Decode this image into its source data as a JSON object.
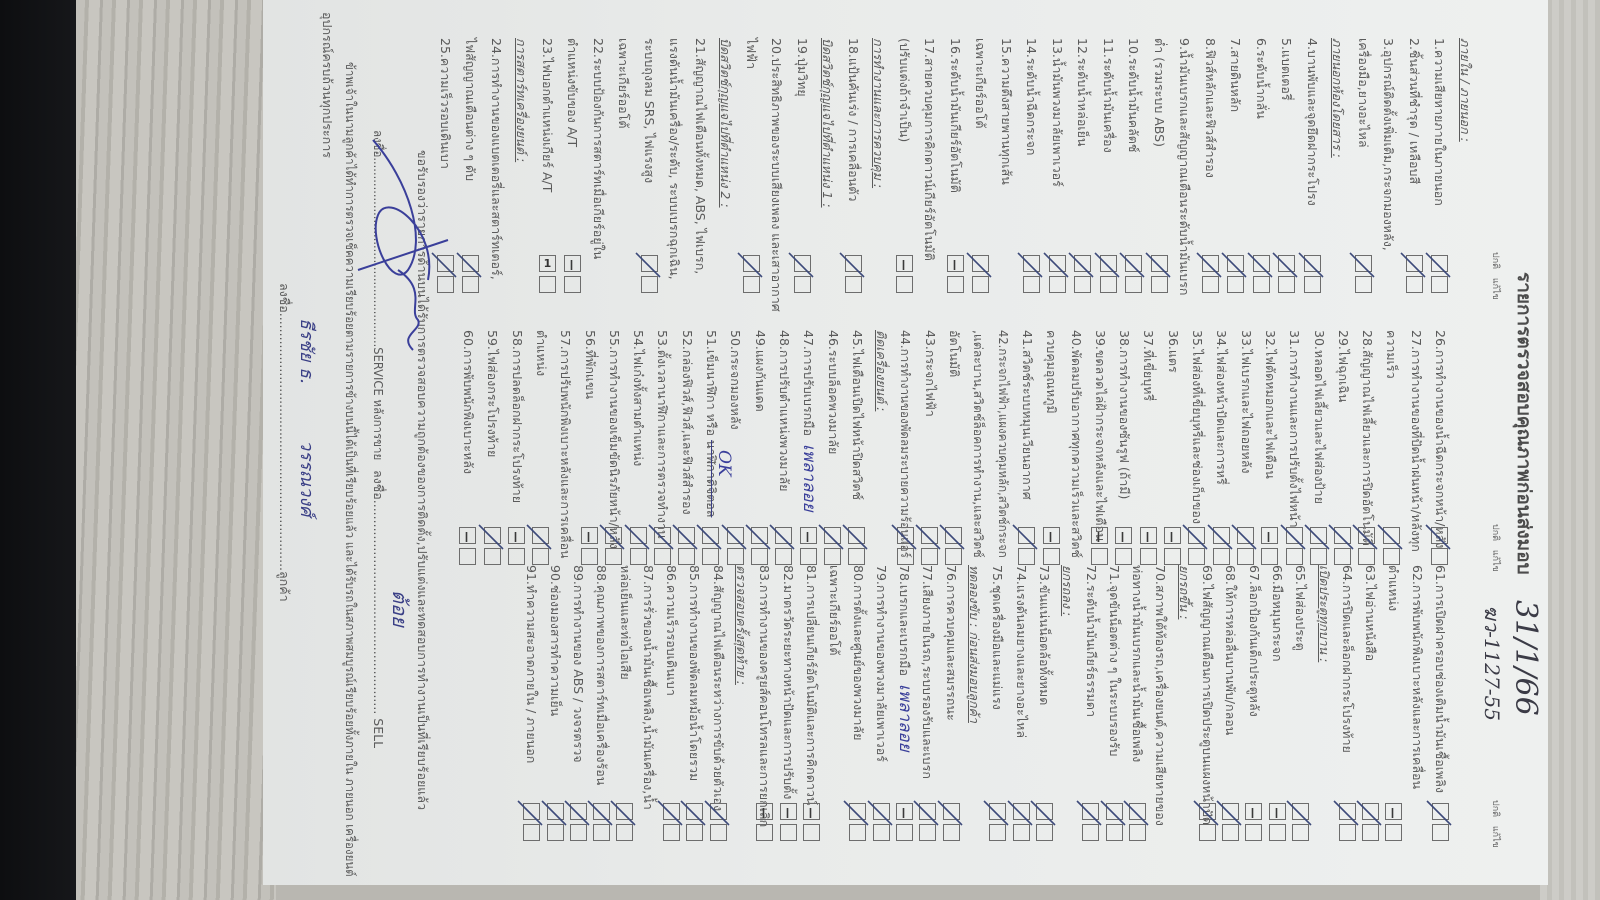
{
  "title": "รายการตรวจสอบคุณภาพก่อนส่งมอบ",
  "handwritten": {
    "date": "31/1/66",
    "plate": "ฆว-1127-55"
  },
  "column_header": "ปกติ แก้ไข",
  "colors": {
    "ink_print": "#5b5b5b",
    "ink_pen": "#3a3f9a",
    "check_mark": "#3d4a7a"
  },
  "columns": [
    {
      "rows": [
        {
          "type": "heading",
          "text": "ภายใน / ภายนอก :"
        },
        {
          "type": "item",
          "lines": [
            "1.ความเสียหายภายในภายนอก"
          ],
          "mark": "check"
        },
        {
          "type": "item",
          "lines": [
            "2.ชิ้นส่วนที่ชำรุด / เหลือบสี"
          ],
          "mark": "check"
        },
        {
          "type": "item",
          "lines": [
            "3.อุปกรณ์ติดตั้งเพิ่มเติม,กระจกมองหลัง,",
            "เครื่องมือ,ยางอะไหล่"
          ],
          "mark": "check"
        },
        {
          "type": "heading",
          "text": "ภายนอกห้องโดยสาร :"
        },
        {
          "type": "item",
          "lines": [
            "4.บานพับและจุดยึดฝากระโปรง"
          ],
          "mark": "check"
        },
        {
          "type": "item",
          "lines": [
            "5.แบตเตอรี่"
          ],
          "mark": "check"
        },
        {
          "type": "item",
          "lines": [
            "6.ระดับน้ำกลั่น"
          ],
          "mark": "check"
        },
        {
          "type": "item",
          "lines": [
            "7.สายดินหลัก"
          ],
          "mark": "check"
        },
        {
          "type": "item",
          "lines": [
            "8.ฟิวส์หลักและฟิวส์สำรอง"
          ],
          "mark": "check"
        },
        {
          "type": "item",
          "lines": [
            "9.น้ำมันเบรกและสัญญาณเตือนระดับน้ำมันเบรก",
            "ต่ำ (รวมระบบ ABS)"
          ],
          "mark": "check"
        },
        {
          "type": "item",
          "lines": [
            "10.ระดับน้ำมันคลัตช์"
          ],
          "mark": "check"
        },
        {
          "type": "item",
          "lines": [
            "11.ระดับน้ำมันเครื่อง"
          ],
          "mark": "check"
        },
        {
          "type": "item",
          "lines": [
            "12.ระดับน้ำหล่อเย็น"
          ],
          "mark": "check"
        },
        {
          "type": "item",
          "lines": [
            "13.น้ำมันพวงมาลัยเพาเวอร์"
          ],
          "mark": "check"
        },
        {
          "type": "item",
          "lines": [
            "14.ระดับน้ำฉีดกระจก"
          ],
          "mark": "check"
        },
        {
          "type": "item",
          "lines": [
            "15.ความตึงสายพานทุกเส้น",
            "เฉพาะเกียร์ออโต้"
          ],
          "mark": "check"
        },
        {
          "type": "item",
          "lines": [
            "16.ระดับน้ำมันเกียร์อัตโนมัติ"
          ],
          "mark": "dash"
        },
        {
          "type": "item",
          "lines": [
            "17.สายควบคุมการคิกดาวน์เกียร์อัตโนมัติ",
            "(ปรับแต่งถ้าจำเป็น)"
          ],
          "mark": "dash"
        },
        {
          "type": "heading",
          "text": "การทำงานและการควบคุม :"
        },
        {
          "type": "item",
          "lines": [
            "18.แป้นคันเร่ง / การเคลื่อนตัว"
          ],
          "mark": "check"
        },
        {
          "type": "heading",
          "text": "บิดสวิตช์กุญแจไปที่ตำแหน่ง 1 :"
        },
        {
          "type": "item",
          "lines": [
            "19.ปุ่มวิทยุ"
          ],
          "mark": "check"
        },
        {
          "type": "item",
          "lines": [
            "20.ประสิทธิภาพของระบบเสียงเพลง และเสาอากาศ",
            "ไฟฟ้า"
          ],
          "mark": "check"
        },
        {
          "type": "heading",
          "text": "บิดสวิตช์กุญแจไปที่ตำแหน่ง 2 :"
        },
        {
          "type": "item",
          "lines": [
            "21.สัญญาณไฟเตือนทั้งหมด, ABS, ไฟเบรก,",
            "แรงดันน้ำมันเครื่อง/ระดับ, ระบบเบรกฉุกเฉิน,",
            "ระบบถุงลม SRS, ไฟแรงสูง"
          ],
          "mark": "check"
        },
        {
          "type": "subheading",
          "text": "เฉพาะเกียร์ออโต้"
        },
        {
          "type": "item",
          "lines": [
            "22.ระบบป้องกันการสตาร์ทเมื่อเกียร์อยู่ใน",
            "ตำแหน่งขับของ A/T"
          ],
          "mark": "dash"
        },
        {
          "type": "item",
          "lines": [
            "23.ไฟบอกตำแหน่งเกียร์ A/T"
          ],
          "mark": "one"
        },
        {
          "type": "heading",
          "text": "การสตาร์ทเครื่องยนต์ :"
        },
        {
          "type": "item",
          "lines": [
            "24.การทำงานของแบตเตอรี่และสตาร์ทเตอร์,",
            "ไฟสัญญาณเตือนต่าง ๆ ดับ"
          ],
          "mark": "check"
        },
        {
          "type": "item",
          "lines": [
            "25.ความเร็วรอบเดินเบา"
          ],
          "mark": "check"
        }
      ]
    },
    {
      "rows": [
        {
          "type": "item",
          "lines": [
            "26.การทำงานของน้ำฉีดกระจกหน้า/หลัง"
          ],
          "mark": "check"
        },
        {
          "type": "item",
          "lines": [
            "27.การทำงานของที่ปัดน้ำฝนหน้า/หลังทุก",
            "ความเร็ว"
          ],
          "mark": "check"
        },
        {
          "type": "item",
          "lines": [
            "28.สัญญาณไฟเลี้ยวและการปิดอัตโนมัติ"
          ],
          "mark": "check"
        },
        {
          "type": "item",
          "lines": [
            "29.ไฟฉุกเฉิน"
          ],
          "mark": "check"
        },
        {
          "type": "item",
          "lines": [
            "30.หลอดไฟเลี้ยวและไฟส่องป้าย"
          ],
          "mark": "check"
        },
        {
          "type": "item",
          "lines": [
            "31.การทำงานและการปรับตั้งไฟหน้า"
          ],
          "mark": "check"
        },
        {
          "type": "item",
          "lines": [
            "32.ไฟตัดหมอกและไฟเตือน"
          ],
          "mark": "dash"
        },
        {
          "type": "item",
          "lines": [
            "33.ไฟเบรกและไฟถอยหลัง"
          ],
          "mark": "check"
        },
        {
          "type": "item",
          "lines": [
            "34.ไฟส่องหน้าปัดและการหรี่"
          ],
          "mark": "check"
        },
        {
          "type": "item",
          "lines": [
            "35.ไฟส่องที่เขี่ยบุหรี่และช่องเก็บของ"
          ],
          "mark": "check"
        },
        {
          "type": "item",
          "lines": [
            "36.แตร"
          ],
          "mark": "dash"
        },
        {
          "type": "item",
          "lines": [
            "37.ที่เขี่ยบุหรี่"
          ],
          "mark": "dash"
        },
        {
          "type": "item",
          "lines": [
            "38.การทำงานของซันรูฟ (ถ้ามี)"
          ],
          "mark": "dash"
        },
        {
          "type": "item",
          "lines": [
            "39.ขดลวดไล่ฝ้ากระจกหลังและไฟเตือน"
          ],
          "mark": "dash"
        },
        {
          "type": "item",
          "lines": [
            "40.พัดลมปรับอากาศทุกความเร็วและสวิตช์",
            "ควบคุมอุณหภูมิ"
          ],
          "mark": "dash"
        },
        {
          "type": "item",
          "lines": [
            "41.สวิตช์ระบบหมุนเวียนอากาศ"
          ],
          "mark": "check"
        },
        {
          "type": "item",
          "lines": [
            "42.กระจกไฟฟ้า,แผงควบคุมหลัก,สวิตช์กระจก",
            ",แต่ละบาน,สวิตช์ล็อคการทำงาน,และสวิตช์",
            "อัตโนมัติ"
          ],
          "mark": "check"
        },
        {
          "type": "item",
          "lines": [
            "43.กระจกไฟฟ้า"
          ],
          "mark": "check"
        },
        {
          "type": "item",
          "lines": [
            "44.การทำงานของพัดลมระบายความร้อนแอร์"
          ],
          "mark": "check"
        },
        {
          "type": "heading",
          "text": "ติดเครื่องยนต์ :"
        },
        {
          "type": "item",
          "lines": [
            "45.ไฟเตือนเปิดไฟหน้าปิดสวิตช์"
          ],
          "mark": "check"
        },
        {
          "type": "item",
          "lines": [
            "46.ระบบล็อคพวงมาลัย"
          ],
          "mark": "check"
        },
        {
          "type": "item",
          "lines": [
            "47.การปรับเบรกมือ"
          ],
          "mark": "dash",
          "note": "เพลาลอย"
        },
        {
          "type": "item",
          "lines": [
            "48.การปรับตำแหน่งพวงมาลัย"
          ],
          "mark": "check"
        },
        {
          "type": "item",
          "lines": [
            "49.แผงกันแดด"
          ],
          "mark": "check"
        },
        {
          "type": "item",
          "lines": [
            "50.กระจกมองหลัง"
          ],
          "mark": "check"
        },
        {
          "type": "item",
          "lines": [
            "51.เข็มนาฬิกา หรือ "
          ],
          "struck": "นาฬิกาดิจิตอล",
          "mark": "check",
          "note": "OK"
        },
        {
          "type": "item",
          "lines": [
            "52.กล่องฟิวส์,ฟิวส์,และฟิวส์สำรอง"
          ],
          "mark": "check"
        },
        {
          "type": "item",
          "lines": [
            "53.ตั้งเวลานาฬิกาและการตรวจทำงาน"
          ],
          "mark": "check"
        },
        {
          "type": "item",
          "lines": [
            "54.ไฟเก๋งทั้งสามตำแหน่ง"
          ],
          "mark": "check"
        },
        {
          "type": "item",
          "lines": [
            "55.การทำงานของเข็มขัดนิรภัยหน้า/หลัง"
          ],
          "mark": "check"
        },
        {
          "type": "item",
          "lines": [
            "56.ที่พักแขน"
          ],
          "mark": "dash"
        },
        {
          "type": "item",
          "lines": [
            "57.การปรับพนักพิงเบาะหลังและการเคลื่อน",
            "ตำแหน่ง"
          ],
          "mark": "check"
        },
        {
          "type": "item",
          "lines": [
            "58.การปลดล็อกฝากระโปรงท้าย"
          ],
          "mark": "dash"
        },
        {
          "type": "item",
          "lines": [
            "59.ไฟส่องกระโปรงท้าย"
          ],
          "mark": "check"
        },
        {
          "type": "item",
          "lines": [
            "60.การพับพนักพิงเบาะหลัง"
          ],
          "mark": "dash"
        }
      ]
    },
    {
      "rows": [
        {
          "type": "item",
          "lines": [
            "61.การเปิดฝาครอบช่องเติมน้ำมันเชื้อเพลิง"
          ],
          "mark": "check"
        },
        {
          "type": "item",
          "lines": [
            "62.การพับพนักพิงเบาะหลังและการเคลื่อน",
            "ตำแหน่ง"
          ],
          "mark": "dash"
        },
        {
          "type": "item",
          "lines": [
            "63.ไฟอ่านหนังสือ"
          ],
          "mark": "check"
        },
        {
          "type": "item",
          "lines": [
            "64.การปิดและล็อกฝากระโปรงท้าย"
          ],
          "mark": "check"
        },
        {
          "type": "heading",
          "text": "เปิดประตูทุกบาน :"
        },
        {
          "type": "item",
          "lines": [
            "65.ไฟส่องประตู"
          ],
          "mark": "check"
        },
        {
          "type": "item",
          "lines": [
            "66.มือหมุนกระจก"
          ],
          "mark": "dash"
        },
        {
          "type": "item",
          "lines": [
            "67.ล็อกป้องกันเด็กประตูหลัง"
          ],
          "mark": "dash"
        },
        {
          "type": "item",
          "lines": [
            "68.ให้การหล่อลื่นบานพับ/กลอน"
          ],
          "mark": "check"
        },
        {
          "type": "item",
          "lines": [
            "69.ไฟสัญญาณเตือนการเปิดประตูบนแผงหน้าปัด"
          ],
          "mark": "check"
        },
        {
          "type": "heading",
          "text": "ยกรถขึ้น :"
        },
        {
          "type": "item",
          "lines": [
            "70.สภาพใต้ท้องรถ,เครื่องยนต์,ความเสียหายของ",
            "ท่อทางน้ำมันเบรกและน้ำมันเชื้อเพลิง"
          ],
          "mark": "check"
        },
        {
          "type": "item",
          "lines": [
            "71.จุดขันน็อตต่าง ๆ ในระบบรองรับ"
          ],
          "mark": "check"
        },
        {
          "type": "item",
          "lines": [
            "72.ระดับน้ำมันเกียร์ธรรมดา"
          ],
          "mark": "check"
        },
        {
          "type": "heading",
          "text": "ยกรถลง :"
        },
        {
          "type": "item",
          "lines": [
            "73.ขันแน่นน็อตล้อทั้งหมด"
          ],
          "mark": "check"
        },
        {
          "type": "item",
          "lines": [
            "74.แรงดันลมยางและยางอะไหล่"
          ],
          "mark": "check"
        },
        {
          "type": "item",
          "lines": [
            "75.ชุดเครื่องมือและแม่แรง"
          ],
          "mark": "check"
        },
        {
          "type": "heading",
          "text": "ทดลองขับ : ก่อนส่งมอบลูกค้า"
        },
        {
          "type": "item",
          "lines": [
            "76.การควบคุมและสมรรถนะ"
          ],
          "mark": "check"
        },
        {
          "type": "item",
          "lines": [
            "77.เสียงภายในรถ,ระบบรองรับและเบรก"
          ],
          "mark": "check"
        },
        {
          "type": "item",
          "lines": [
            "78.เบรกและเบรกมือ"
          ],
          "mark": "dash",
          "note": "เพลาลอย"
        },
        {
          "type": "item",
          "lines": [
            "79.การทำงานของพวงมาลัยเพาเวอร์"
          ],
          "mark": "check"
        },
        {
          "type": "item",
          "lines": [
            "80.การตั้งและศูนย์ของพวงมาลัย"
          ],
          "mark": "check"
        },
        {
          "type": "subheading",
          "text": "เฉพาะเกียร์ออโต้"
        },
        {
          "type": "item",
          "lines": [
            "81.การเปลี่ยนเกียร์อัตโนมัติและการคิกดาวน์"
          ],
          "mark": "dash"
        },
        {
          "type": "item",
          "lines": [
            "82.มาตรวัดระยะทางหน้าปัดและการปรับตั้ง"
          ],
          "mark": "dash"
        },
        {
          "type": "item",
          "lines": [
            "83.การทำงานของครูยส์คอนโทรลและการยกเลิก"
          ],
          "mark": "dash"
        },
        {
          "type": "heading",
          "text": "ตรวจสอบครั้งสุดท้าย :"
        },
        {
          "type": "item",
          "lines": [
            "84.สัญญาณไฟเตือนระหว่างการขับด้วยตัวเอง"
          ],
          "mark": "check"
        },
        {
          "type": "item",
          "lines": [
            "85.การทำงานของพัดลมหม้อน้ำโดยรวม"
          ],
          "mark": "check"
        },
        {
          "type": "item",
          "lines": [
            "86.ความเร็วรอบเดินเบา"
          ],
          "mark": "check"
        },
        {
          "type": "item",
          "lines": [
            "87.การรั่วของน้ำมันเชื้อเพลิง,น้ำมันเครื่อง,น้ำ",
            "หล่อเย็นและท่อไอเสีย"
          ],
          "mark": "check"
        },
        {
          "type": "item",
          "lines": [
            "88.คุณภาพของการสตาร์ทเมื่อเครื่องร้อน"
          ],
          "mark": "check"
        },
        {
          "type": "item",
          "lines": [
            "89.การทำงานของ ABS / วงจรตรวจ"
          ],
          "mark": "check"
        },
        {
          "type": "item",
          "lines": [
            "90.ช่องมองสารทำความเย็น"
          ],
          "mark": "check"
        },
        {
          "type": "item",
          "lines": [
            "91.ทำความสะอาดภายใน / ภายนอก"
          ],
          "mark": "check"
        }
      ]
    }
  ],
  "footer": {
    "certify": "ขอรับรองว่ารายการด้านบนได้รับการตรวจสอบความถูกต้องของการติดตั้ง,ปรับแต่งและทดสอบการทำงานเป็นที่เรียบร้อยแล้ว",
    "service_sign_label": "ลงชื่อ....................................................SERVICE หลังการขาย",
    "sell_sign_label": "ลงชื่อ...................................................... SELL",
    "sell_signature": "ต้อย",
    "customer_statement": "ข้าพเจ้าในนามลูกค้าได้ทำการตรวจเช็คความเรียบร้อยตามรายการข้างบนนี้ได้เป็นที่เรียบร้อยแล้ว และได้รับรถในสภาพสมบูรณ์เรียบร้อยทั้งภายใน ภายนอก เครื่องยนต์",
    "customer_statement_2": "อุปกรณ์ครบถ้วนทุกประการ",
    "customer_sign_label": "ลงชื่อ.................................................................ลูกค้า",
    "customer_signature_first": "ธีรชัย ธ.",
    "customer_signature_last": "วรรณวงศ์"
  }
}
